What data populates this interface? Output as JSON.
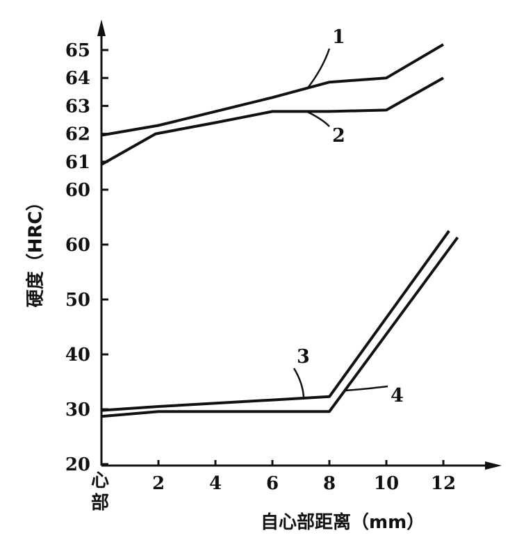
{
  "chart_data": {
    "type": "line",
    "ylabel": "硬度（HRC）",
    "xlabel": "自心部距离（mm）",
    "x_ticks": [
      "心部",
      "2",
      "4",
      "6",
      "8",
      "10",
      "12"
    ],
    "x_tick_values": [
      0,
      2,
      4,
      6,
      8,
      10,
      12
    ],
    "xlim": [
      0,
      14
    ],
    "panels": [
      {
        "position": "upper",
        "ylim": [
          60,
          65
        ],
        "y_ticks": [
          60,
          61,
          62,
          63,
          64,
          65
        ],
        "series": [
          {
            "name": "1",
            "points": [
              [
                0,
                61.95
              ],
              [
                2,
                62.3
              ],
              [
                4,
                62.8
              ],
              [
                6,
                63.3
              ],
              [
                8,
                63.85
              ],
              [
                10,
                64.0
              ],
              [
                12,
                65.2
              ]
            ]
          },
          {
            "name": "2",
            "points": [
              [
                0,
                60.9
              ],
              [
                1.9,
                62.0
              ],
              [
                4,
                62.4
              ],
              [
                6,
                62.8
              ],
              [
                8,
                62.8
              ],
              [
                10,
                62.85
              ],
              [
                12,
                64.0
              ]
            ]
          }
        ]
      },
      {
        "position": "lower",
        "ylim": [
          20,
          60
        ],
        "y_ticks": [
          20,
          30,
          40,
          50,
          60
        ],
        "series": [
          {
            "name": "3",
            "points": [
              [
                0,
                29.8
              ],
              [
                2,
                30.5
              ],
              [
                6,
                31.7
              ],
              [
                8,
                32.3
              ],
              [
                12.2,
                62.5
              ]
            ]
          },
          {
            "name": "4",
            "points": [
              [
                0,
                28.7
              ],
              [
                2,
                29.6
              ],
              [
                6,
                29.6
              ],
              [
                8,
                29.6
              ],
              [
                12.5,
                61.3
              ]
            ]
          }
        ]
      }
    ]
  }
}
